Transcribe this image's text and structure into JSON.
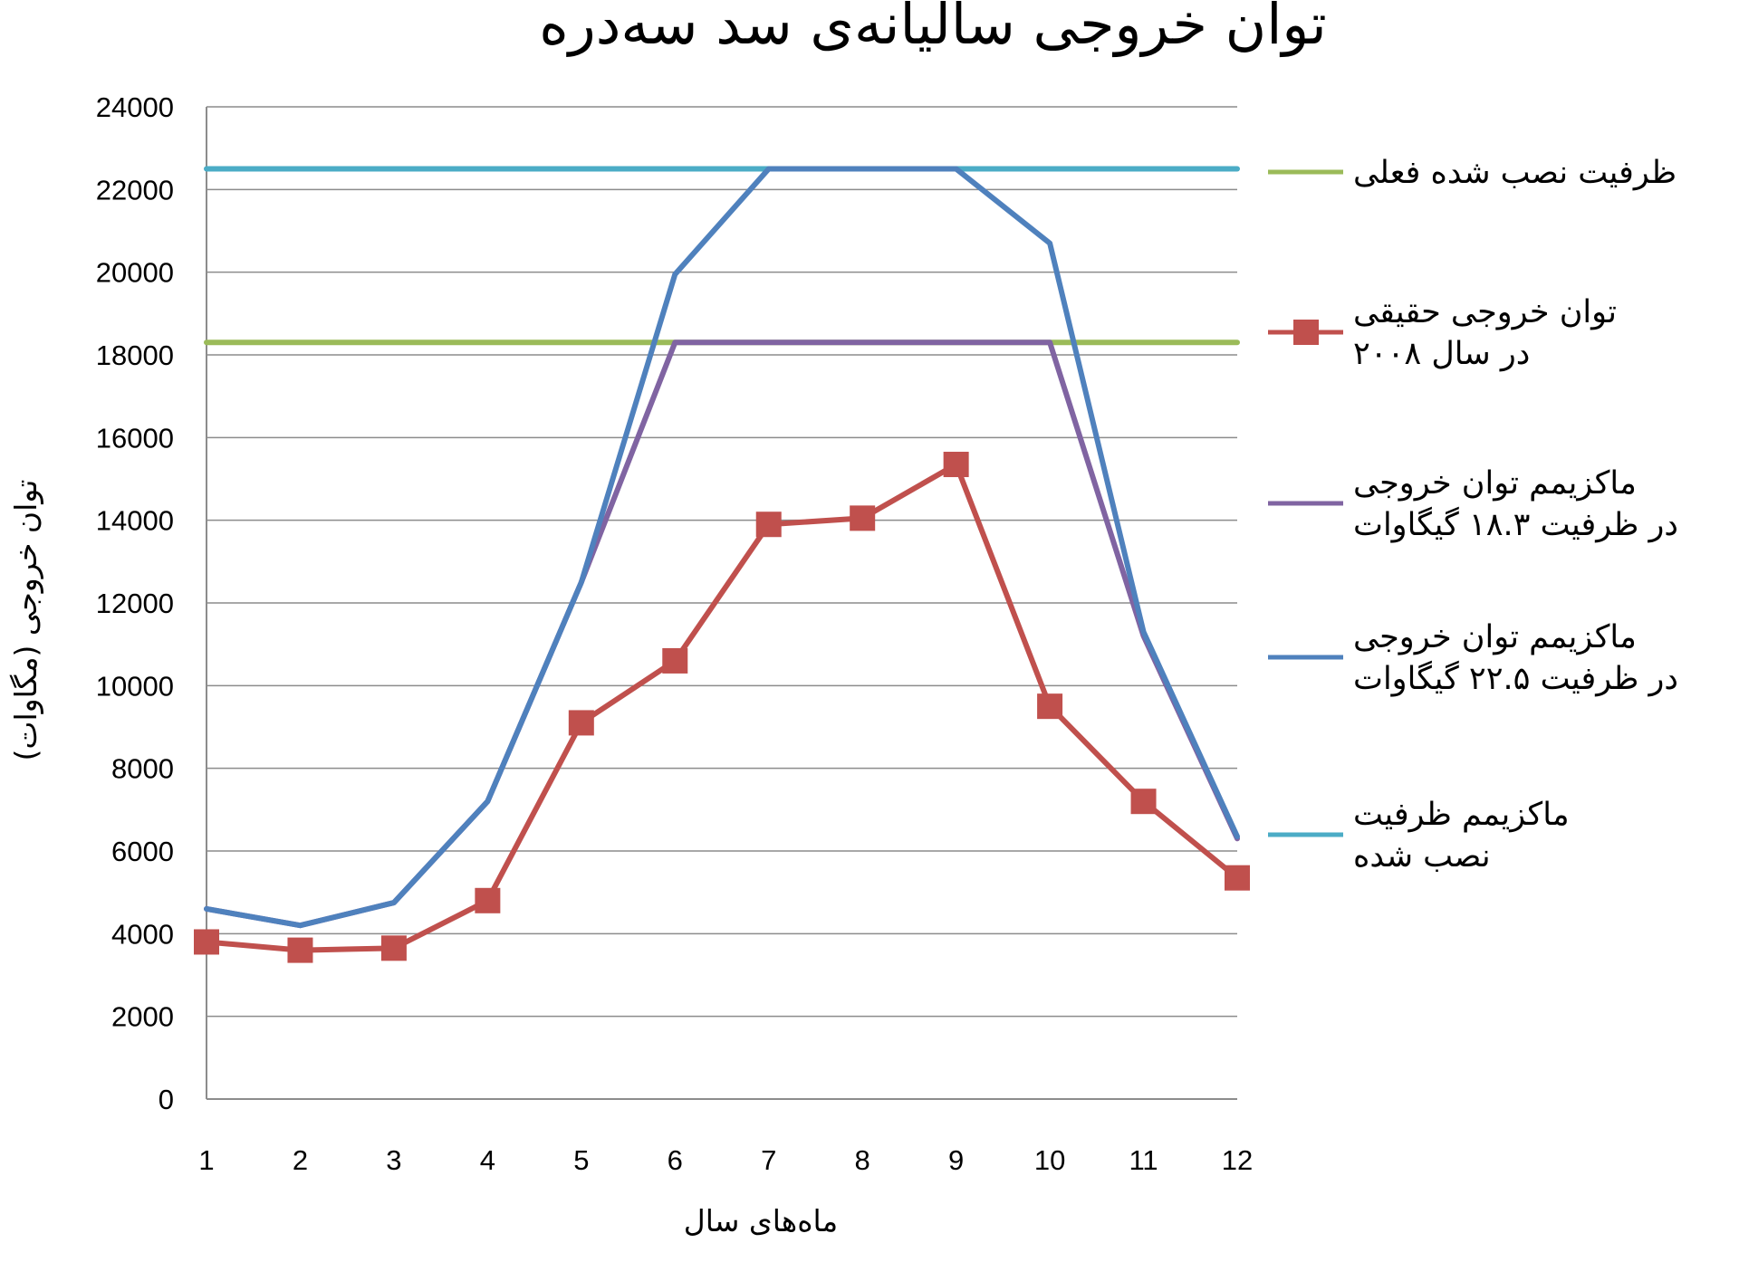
{
  "chart_data": {
    "type": "line",
    "title": "توان خروجی سالیانه‌ی سد سه‌دره",
    "xlabel": "ماه‌های سال",
    "ylabel": "توان خروجی (مگاوات)",
    "x": [
      1,
      2,
      3,
      4,
      5,
      6,
      7,
      8,
      9,
      10,
      11,
      12
    ],
    "ylim": [
      0,
      24000
    ],
    "yticks": [
      0,
      2000,
      4000,
      6000,
      8000,
      10000,
      12000,
      14000,
      16000,
      18000,
      20000,
      22000,
      24000
    ],
    "grid": true,
    "legend_position": "right",
    "series": [
      {
        "name": "ظرفیت نصب شده فعلی",
        "legend_lines": [
          "ظرفیت نصب شده فعلی"
        ],
        "color": "#9BBB59",
        "marker": "none",
        "values": [
          18300,
          18300,
          18300,
          18300,
          18300,
          18300,
          18300,
          18300,
          18300,
          18300,
          18300,
          18300
        ]
      },
      {
        "name": "توان خروجی حقیقی در سال ۲۰۰۸",
        "legend_lines": [
          "توان خروجی حقیقی",
          "در سال ۲۰۰۸"
        ],
        "color": "#C0504D",
        "marker": "square",
        "values": [
          3800,
          3600,
          3650,
          4800,
          9100,
          10600,
          13900,
          14050,
          15350,
          9500,
          7200,
          5350
        ]
      },
      {
        "name": "ماکزیمم توان خروجی در ظرفیت ۱۸.۳ گیگاوات",
        "legend_lines": [
          "ماکزیمم توان خروجی",
          "در ظرفیت ۱۸.۳ گیگاوات"
        ],
        "color": "#8064A2",
        "marker": "none",
        "values": [
          4600,
          4200,
          4750,
          7200,
          12500,
          18300,
          18300,
          18300,
          18300,
          18300,
          11200,
          6300
        ]
      },
      {
        "name": "ماکزیمم توان خروجی در ظرفیت ۲۲.۵ گیگاوات",
        "legend_lines": [
          "ماکزیمم توان خروجی",
          "در ظرفیت ۲۲.۵ گیگاوات"
        ],
        "color": "#4F81BD",
        "marker": "none",
        "values": [
          4600,
          4200,
          4750,
          7200,
          12500,
          19950,
          22500,
          22500,
          22500,
          20700,
          11300,
          6350
        ]
      },
      {
        "name": "ماکزیمم ظرفیت نصب شده",
        "legend_lines": [
          "ماکزیمم ظرفیت",
          "نصب شده"
        ],
        "color": "#4BACC6",
        "marker": "none",
        "values": [
          22500,
          22500,
          22500,
          22500,
          22500,
          22500,
          22500,
          22500,
          22500,
          22500,
          22500,
          22500
        ]
      }
    ]
  }
}
